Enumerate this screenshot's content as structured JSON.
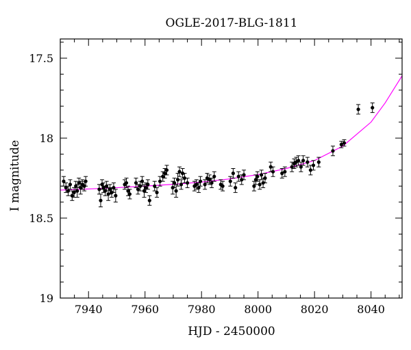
{
  "chart_data": {
    "type": "scatter",
    "title": "OGLE-2017-BLG-1811",
    "xlabel": "HJD - 2450000",
    "ylabel": "I magnitude",
    "xlim": [
      7930,
      8051
    ],
    "ylim": [
      19,
      17.38
    ],
    "y_inverted": true,
    "xticks": [
      7940,
      7960,
      7980,
      8000,
      8020,
      8040
    ],
    "yticks": [
      17.5,
      18,
      18.5,
      19
    ],
    "ytick_labels": [
      "17.5",
      "18",
      "18.5",
      "19"
    ],
    "grid": false,
    "colors": {
      "points": "#000000",
      "model": "#ff00ff"
    },
    "series": [
      {
        "kind": "points_with_errorbars",
        "x": [
          7931.2,
          7932.0,
          7932.8,
          7933.5,
          7934.2,
          7934.9,
          7935.5,
          7936.0,
          7936.6,
          7937.2,
          7937.8,
          7938.5,
          7939.0,
          7943.8,
          7944.3,
          7944.8,
          7945.3,
          7945.9,
          7946.4,
          7947.0,
          7947.6,
          7948.2,
          7948.9,
          7949.6,
          7952.8,
          7953.4,
          7954.0,
          7954.6,
          7956.8,
          7957.5,
          7958.3,
          7959.0,
          7959.7,
          7960.3,
          7961.0,
          7961.6,
          7963.4,
          7964.2,
          7965.3,
          7966.3,
          7967.0,
          7967.7,
          7969.8,
          7970.4,
          7971.0,
          7971.6,
          7972.2,
          7972.8,
          7973.3,
          7974.0,
          7975.0,
          7977.5,
          7978.2,
          7979.0,
          7979.6,
          7981.2,
          7982.0,
          7982.8,
          7983.6,
          7984.5,
          7986.8,
          7987.5,
          7990.2,
          7991.2,
          7992.0,
          7993.1,
          7994.2,
          7995.0,
          7998.6,
          7999.2,
          7999.8,
          8000.6,
          8001.2,
          8001.8,
          8002.5,
          8004.5,
          8005.3,
          8008.5,
          8009.5,
          8012.0,
          8012.8,
          8013.5,
          8014.3,
          8015.2,
          8016.0,
          8017.5,
          8018.6,
          8019.6,
          8021.5,
          8026.5,
          8029.5,
          8030.5,
          8035.5,
          8040.5
        ],
        "y": [
          18.27,
          18.31,
          18.33,
          18.29,
          18.36,
          18.34,
          18.3,
          18.33,
          18.28,
          18.31,
          18.29,
          18.3,
          18.27,
          18.32,
          18.39,
          18.29,
          18.31,
          18.33,
          18.3,
          18.35,
          18.32,
          18.34,
          18.31,
          18.36,
          18.29,
          18.28,
          18.33,
          18.35,
          18.28,
          18.32,
          18.3,
          18.27,
          18.33,
          18.31,
          18.29,
          18.39,
          18.3,
          18.34,
          18.27,
          18.24,
          18.22,
          18.2,
          18.31,
          18.28,
          18.33,
          18.26,
          18.21,
          18.29,
          18.22,
          18.25,
          18.28,
          18.3,
          18.29,
          18.31,
          18.27,
          18.29,
          18.25,
          18.26,
          18.28,
          18.24,
          18.29,
          18.3,
          18.27,
          18.22,
          18.31,
          18.24,
          18.26,
          18.23,
          18.3,
          18.26,
          18.24,
          18.29,
          18.23,
          18.28,
          18.25,
          18.18,
          18.21,
          18.22,
          18.21,
          18.18,
          18.16,
          18.15,
          18.14,
          18.18,
          18.14,
          18.15,
          18.2,
          18.17,
          18.15,
          18.08,
          18.04,
          18.03,
          17.82,
          17.81
        ],
        "err": [
          0.03,
          0.03,
          0.03,
          0.03,
          0.03,
          0.03,
          0.03,
          0.04,
          0.03,
          0.04,
          0.03,
          0.03,
          0.03,
          0.03,
          0.04,
          0.03,
          0.03,
          0.03,
          0.03,
          0.04,
          0.03,
          0.03,
          0.03,
          0.04,
          0.03,
          0.03,
          0.03,
          0.03,
          0.03,
          0.03,
          0.03,
          0.03,
          0.04,
          0.03,
          0.03,
          0.03,
          0.03,
          0.03,
          0.03,
          0.03,
          0.03,
          0.03,
          0.04,
          0.03,
          0.04,
          0.04,
          0.03,
          0.03,
          0.03,
          0.03,
          0.03,
          0.03,
          0.03,
          0.03,
          0.03,
          0.03,
          0.03,
          0.03,
          0.03,
          0.03,
          0.03,
          0.03,
          0.03,
          0.03,
          0.03,
          0.03,
          0.03,
          0.03,
          0.03,
          0.03,
          0.03,
          0.03,
          0.03,
          0.03,
          0.03,
          0.03,
          0.03,
          0.03,
          0.03,
          0.03,
          0.03,
          0.03,
          0.03,
          0.03,
          0.03,
          0.03,
          0.03,
          0.03,
          0.03,
          0.03,
          0.02,
          0.02,
          0.03,
          0.03
        ]
      },
      {
        "kind": "model_curve",
        "x": [
          7930,
          7940,
          7950,
          7960,
          7970,
          7980,
          7990,
          8000,
          8010,
          8020,
          8030,
          8040,
          8045,
          8051
        ],
        "y": [
          18.325,
          18.318,
          18.31,
          18.3,
          18.289,
          18.275,
          18.255,
          18.228,
          18.19,
          18.14,
          18.05,
          17.9,
          17.78,
          17.61
        ]
      }
    ]
  }
}
